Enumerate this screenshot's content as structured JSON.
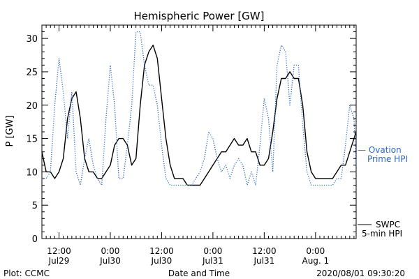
{
  "chart_data": {
    "type": "line",
    "title": "Hemispheric Power [GW]",
    "ylabel": "P [GW]",
    "xlabel": "Date and Time",
    "ylim": [
      0,
      32
    ],
    "yticks": [
      0,
      5,
      10,
      15,
      20,
      25,
      30
    ],
    "xlim": [
      "2020-07-29 08:00",
      "2020-08-01 09:30"
    ],
    "xticks": [
      {
        "t": "2020-07-29 12:00",
        "line1": "12:00",
        "line2": "Jul29"
      },
      {
        "t": "2020-07-30 00:00",
        "line1": "0:00",
        "line2": "Jul30"
      },
      {
        "t": "2020-07-30 12:00",
        "line1": "12:00",
        "line2": "Jul30"
      },
      {
        "t": "2020-07-31 00:00",
        "line1": "0:00",
        "line2": "Jul31"
      },
      {
        "t": "2020-07-31 12:00",
        "line1": "12:00",
        "line2": "Jul31"
      },
      {
        "t": "2020-08-01 00:00",
        "line1": "0:00",
        "line2": "Aug. 1"
      }
    ],
    "series": [
      {
        "name": "SWPC 5-min HPI",
        "legend_line1": "SWPC",
        "legend_line2": "5-min HPI",
        "color": "#000000",
        "style": "solid",
        "x": [
          "2020-07-29 08:00",
          "2020-07-29 09:00",
          "2020-07-29 10:00",
          "2020-07-29 11:00",
          "2020-07-29 12:00",
          "2020-07-29 13:00",
          "2020-07-29 14:00",
          "2020-07-29 15:00",
          "2020-07-29 16:00",
          "2020-07-29 17:00",
          "2020-07-29 18:00",
          "2020-07-29 19:00",
          "2020-07-29 20:00",
          "2020-07-29 21:00",
          "2020-07-29 22:00",
          "2020-07-29 23:00",
          "2020-07-30 00:00",
          "2020-07-30 01:00",
          "2020-07-30 02:00",
          "2020-07-30 03:00",
          "2020-07-30 04:00",
          "2020-07-30 05:00",
          "2020-07-30 06:00",
          "2020-07-30 07:00",
          "2020-07-30 08:00",
          "2020-07-30 09:00",
          "2020-07-30 10:00",
          "2020-07-30 11:00",
          "2020-07-30 12:00",
          "2020-07-30 13:00",
          "2020-07-30 14:00",
          "2020-07-30 15:00",
          "2020-07-30 16:00",
          "2020-07-30 17:00",
          "2020-07-30 18:00",
          "2020-07-30 19:00",
          "2020-07-30 20:00",
          "2020-07-30 21:00",
          "2020-07-30 22:00",
          "2020-07-30 23:00",
          "2020-07-31 00:00",
          "2020-07-31 01:00",
          "2020-07-31 02:00",
          "2020-07-31 03:00",
          "2020-07-31 04:00",
          "2020-07-31 05:00",
          "2020-07-31 06:00",
          "2020-07-31 07:00",
          "2020-07-31 08:00",
          "2020-07-31 09:00",
          "2020-07-31 10:00",
          "2020-07-31 11:00",
          "2020-07-31 12:00",
          "2020-07-31 13:00",
          "2020-07-31 14:00",
          "2020-07-31 15:00",
          "2020-07-31 16:00",
          "2020-07-31 17:00",
          "2020-07-31 18:00",
          "2020-07-31 19:00",
          "2020-07-31 20:00",
          "2020-07-31 21:00",
          "2020-07-31 22:00",
          "2020-07-31 23:00",
          "2020-08-01 00:00",
          "2020-08-01 01:00",
          "2020-08-01 02:00",
          "2020-08-01 03:00",
          "2020-08-01 04:00",
          "2020-08-01 05:00",
          "2020-08-01 06:00",
          "2020-08-01 07:00",
          "2020-08-01 08:00",
          "2020-08-01 09:00",
          "2020-08-01 09:30"
        ],
        "y": [
          13,
          10,
          10,
          9,
          10,
          12,
          18,
          21,
          22,
          18,
          12,
          10,
          10,
          9,
          9,
          10,
          11,
          14,
          15,
          15,
          14,
          11,
          12,
          20,
          26,
          28,
          29,
          27,
          21,
          15,
          11,
          9,
          9,
          9,
          8,
          8,
          8,
          8,
          9,
          10,
          11,
          12,
          13,
          13,
          14,
          15,
          14,
          14,
          15,
          13,
          13,
          11,
          11,
          12,
          16,
          21,
          24,
          24,
          25,
          24,
          24,
          20,
          13,
          10,
          9,
          9,
          9,
          9,
          9,
          10,
          11,
          11,
          13,
          15,
          16
        ]
      },
      {
        "name": "Ovation Prime HPI",
        "legend_line1": "— Ovation",
        "legend_line2": "Prime HPI",
        "color": "#2a68c8",
        "style": "dotted",
        "x": [
          "2020-07-29 08:00",
          "2020-07-29 09:00",
          "2020-07-29 10:00",
          "2020-07-29 11:00",
          "2020-07-29 12:00",
          "2020-07-29 13:00",
          "2020-07-29 14:00",
          "2020-07-29 15:00",
          "2020-07-29 16:00",
          "2020-07-29 17:00",
          "2020-07-29 18:00",
          "2020-07-29 19:00",
          "2020-07-29 20:00",
          "2020-07-29 21:00",
          "2020-07-29 22:00",
          "2020-07-29 23:00",
          "2020-07-30 00:00",
          "2020-07-30 01:00",
          "2020-07-30 02:00",
          "2020-07-30 03:00",
          "2020-07-30 04:00",
          "2020-07-30 05:00",
          "2020-07-30 06:00",
          "2020-07-30 07:00",
          "2020-07-30 08:00",
          "2020-07-30 09:00",
          "2020-07-30 10:00",
          "2020-07-30 11:00",
          "2020-07-30 12:00",
          "2020-07-30 13:00",
          "2020-07-30 14:00",
          "2020-07-30 15:00",
          "2020-07-30 16:00",
          "2020-07-30 17:00",
          "2020-07-30 18:00",
          "2020-07-30 19:00",
          "2020-07-30 20:00",
          "2020-07-30 21:00",
          "2020-07-30 22:00",
          "2020-07-30 23:00",
          "2020-07-31 00:00",
          "2020-07-31 01:00",
          "2020-07-31 02:00",
          "2020-07-31 03:00",
          "2020-07-31 04:00",
          "2020-07-31 05:00",
          "2020-07-31 06:00",
          "2020-07-31 07:00",
          "2020-07-31 08:00",
          "2020-07-31 09:00",
          "2020-07-31 10:00",
          "2020-07-31 11:00",
          "2020-07-31 12:00",
          "2020-07-31 13:00",
          "2020-07-31 14:00",
          "2020-07-31 15:00",
          "2020-07-31 16:00",
          "2020-07-31 17:00",
          "2020-07-31 18:00",
          "2020-07-31 19:00",
          "2020-07-31 20:00",
          "2020-07-31 21:00",
          "2020-07-31 22:00",
          "2020-07-31 23:00",
          "2020-08-01 00:00",
          "2020-08-01 01:00",
          "2020-08-01 02:00",
          "2020-08-01 03:00",
          "2020-08-01 04:00",
          "2020-08-01 05:00",
          "2020-08-01 06:00",
          "2020-08-01 07:00",
          "2020-08-01 08:00",
          "2020-08-01 09:00",
          "2020-08-01 09:30"
        ],
        "y": [
          9,
          9,
          10,
          20,
          27,
          22,
          15,
          22,
          10,
          8,
          12,
          15,
          11,
          9,
          8,
          18,
          26,
          20,
          9,
          9,
          14,
          20,
          31,
          31,
          26,
          23,
          23,
          20,
          14,
          9,
          8,
          8,
          8,
          8,
          8,
          8,
          9,
          10,
          12,
          16,
          15,
          12,
          10,
          11,
          9,
          11,
          12,
          11,
          8,
          10,
          8,
          14,
          21,
          18,
          10,
          26,
          29,
          28,
          20,
          26,
          26,
          17,
          10,
          8,
          8,
          8,
          8,
          8,
          8,
          9,
          9,
          14,
          20,
          18,
          11
        ]
      }
    ]
  },
  "footer": {
    "plot_credit": "Plot: CCMC",
    "timestamp": "2020/08/01 09:30:20"
  }
}
